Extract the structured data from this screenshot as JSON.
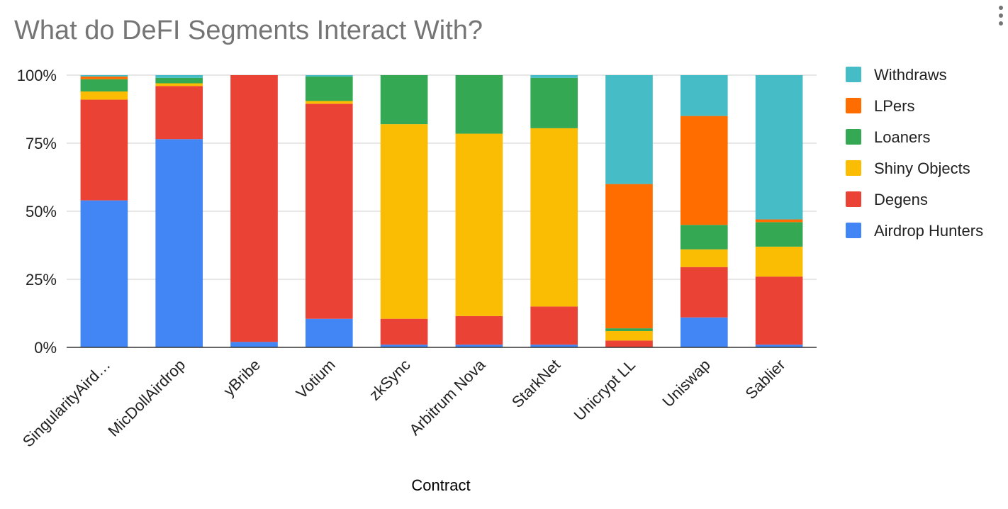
{
  "title": "What do DeFI Segments Interact With?",
  "chart_data": {
    "type": "bar",
    "stacked": true,
    "normalized": true,
    "title": "What do DeFI Segments Interact With?",
    "xlabel": "Contract",
    "ylabel": "",
    "ylim": [
      0,
      100
    ],
    "yticks": [
      "0%",
      "25%",
      "50%",
      "75%",
      "100%"
    ],
    "grid": true,
    "legend_position": "right",
    "categories": [
      "SingularityAird…",
      "MicDollAirdrop",
      "yBribe",
      "Votium",
      "zkSync",
      "Arbitrum Nova",
      "StarkNet",
      "Unicrypt  LL",
      "Uniswap",
      "Sablier"
    ],
    "series": [
      {
        "name": "Airdrop Hunters",
        "color": "#4285f4",
        "values": [
          54,
          76.5,
          2,
          10.5,
          1,
          1,
          1,
          0,
          11,
          1
        ]
      },
      {
        "name": "Degens",
        "color": "#ea4335",
        "values": [
          37,
          19.5,
          98,
          79,
          9.5,
          10.5,
          14,
          2.5,
          18.5,
          25
        ]
      },
      {
        "name": "Shiny Objects",
        "color": "#fbbc04",
        "values": [
          3,
          1,
          0,
          1,
          71.5,
          67,
          65.5,
          3.5,
          6.5,
          11
        ]
      },
      {
        "name": "Loaners",
        "color": "#34a853",
        "values": [
          4.5,
          2,
          0,
          9,
          18,
          21.5,
          18.5,
          1,
          9,
          9
        ]
      },
      {
        "name": "LPers",
        "color": "#ff6d01",
        "values": [
          1,
          0,
          0,
          0,
          0,
          0,
          0,
          53,
          40,
          1
        ]
      },
      {
        "name": "Withdraws",
        "color": "#46bdc6",
        "values": [
          0.5,
          1,
          0,
          0.5,
          0,
          0,
          1,
          40,
          15,
          53
        ]
      }
    ]
  },
  "menu_icon": "more-vert-icon"
}
